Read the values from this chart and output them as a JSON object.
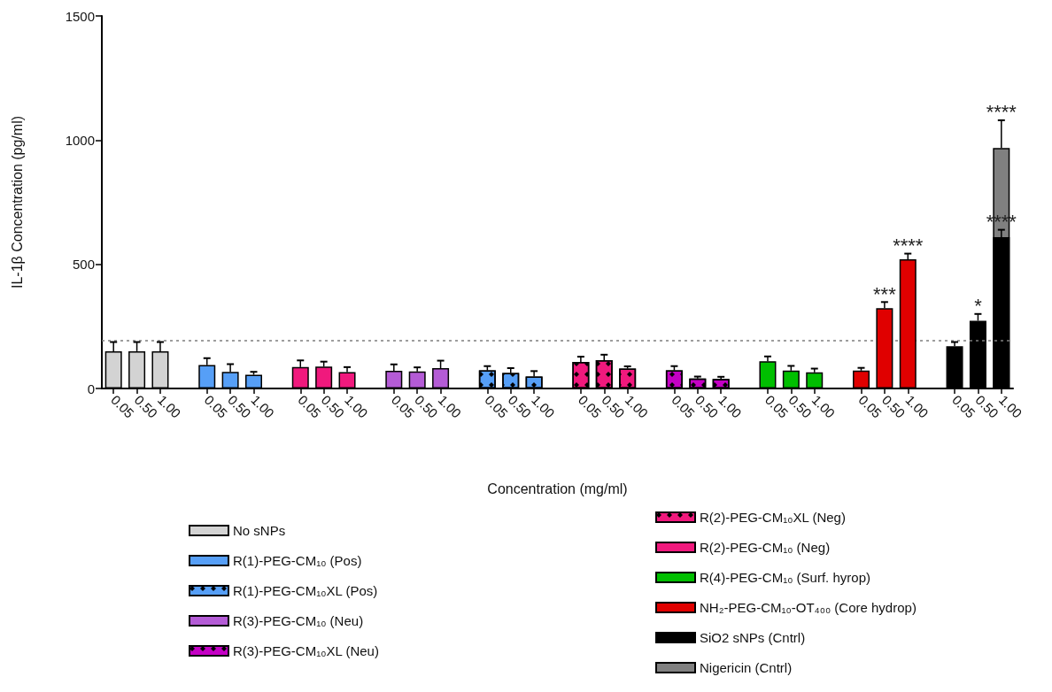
{
  "chart_data": {
    "type": "bar",
    "xlabel": "Concentration (mg/ml)",
    "ylabel": "IL-1β Concentration (pg/ml)",
    "categories": [
      "0.05",
      "0.50",
      "1.00",
      null,
      "0.05",
      "0.50",
      "1.00",
      null,
      "0.05",
      "0.50",
      "1.00",
      null,
      "0.05",
      "0.50",
      "1.00",
      null,
      "0.05",
      "0.50",
      "1.00",
      null,
      "0.05",
      "0.50",
      "1.00",
      null,
      "0.05",
      "0.50",
      "1.00",
      null,
      "0.05",
      "0.50",
      "1.00",
      null,
      "0.05",
      "0.50",
      "1.00",
      null,
      "0.05",
      "0.50",
      "1.00"
    ],
    "ylim": [
      0,
      1500
    ],
    "yticks": [
      0,
      500,
      1000,
      1500
    ],
    "grid": false,
    "legend": "bottom",
    "ref_lines": [
      {
        "axis": "y",
        "value": 195,
        "color": "#7f7f7f",
        "line_style": "dotted"
      }
    ],
    "series": [
      {
        "name": "No sNPs",
        "color": "#d3d3d3",
        "values": [
          150,
          150,
          150,
          null,
          null,
          null,
          null,
          null,
          null,
          null,
          null,
          null,
          null,
          null,
          null,
          null,
          null,
          null,
          null,
          null,
          null,
          null,
          null,
          null,
          null,
          null,
          null,
          null,
          null,
          null,
          null,
          null,
          null,
          null,
          null,
          null,
          null,
          null,
          null
        ],
        "errors": [
          37,
          37,
          37,
          null,
          null,
          null,
          null,
          null,
          null,
          null,
          null,
          null,
          null,
          null,
          null,
          null,
          null,
          null,
          null,
          null,
          null,
          null,
          null,
          null,
          null,
          null,
          null,
          null,
          null,
          null,
          null,
          null,
          null,
          null,
          null,
          null,
          null,
          null,
          null
        ]
      },
      {
        "name": "R(1)-PEG-CM₁₀ (Pos)",
        "color": "#569ff7",
        "values": [
          null,
          null,
          null,
          null,
          94,
          67,
          55,
          null,
          null,
          null,
          null,
          null,
          null,
          null,
          null,
          null,
          null,
          null,
          null,
          null,
          null,
          null,
          null,
          null,
          null,
          null,
          null,
          null,
          null,
          null,
          null,
          null,
          null,
          null,
          null,
          null,
          null,
          null,
          null
        ],
        "errors": [
          null,
          null,
          null,
          null,
          28,
          31,
          12,
          null,
          null,
          null,
          null,
          null,
          null,
          null,
          null,
          null,
          null,
          null,
          null,
          null,
          null,
          null,
          null,
          null,
          null,
          null,
          null,
          null,
          null,
          null,
          null,
          null,
          null,
          null,
          null,
          null,
          null,
          null,
          null
        ]
      },
      {
        "name": "R(1)-PEG-CM₁₀XL (Pos)",
        "color": "#569ff7",
        "marker": "diamond",
        "values": [
          null,
          null,
          null,
          null,
          null,
          null,
          null,
          null,
          null,
          null,
          null,
          null,
          null,
          null,
          null,
          null,
          73,
          62,
          48,
          null,
          null,
          null,
          null,
          null,
          null,
          null,
          null,
          null,
          null,
          null,
          null,
          null,
          null,
          null,
          null,
          null,
          null,
          null,
          null
        ],
        "errors": [
          null,
          null,
          null,
          null,
          null,
          null,
          null,
          null,
          null,
          null,
          null,
          null,
          null,
          null,
          null,
          null,
          17,
          20,
          22,
          null,
          null,
          null,
          null,
          null,
          null,
          null,
          null,
          null,
          null,
          null,
          null,
          null,
          null,
          null,
          null,
          null,
          null,
          null,
          null
        ]
      },
      {
        "name": "R(3)-PEG-CM₁₀ (Neu)",
        "color": "#b45bd6",
        "values": [
          null,
          null,
          null,
          null,
          null,
          null,
          null,
          null,
          null,
          null,
          null,
          null,
          71,
          69,
          82,
          null,
          null,
          null,
          null,
          null,
          null,
          null,
          null,
          null,
          null,
          null,
          null,
          null,
          null,
          null,
          null,
          null,
          null,
          null,
          null,
          null,
          null,
          null,
          null
        ],
        "errors": [
          null,
          null,
          null,
          null,
          null,
          null,
          null,
          null,
          null,
          null,
          null,
          null,
          26,
          16,
          30,
          null,
          null,
          null,
          null,
          null,
          null,
          null,
          null,
          null,
          null,
          null,
          null,
          null,
          null,
          null,
          null,
          null,
          null,
          null,
          null,
          null,
          null,
          null,
          null
        ]
      },
      {
        "name": "R(3)-PEG-CM₁₀XL (Neu)",
        "color": "#c400c4",
        "marker": "diamond",
        "values": [
          null,
          null,
          null,
          null,
          null,
          null,
          null,
          null,
          null,
          null,
          null,
          null,
          null,
          null,
          null,
          null,
          null,
          null,
          null,
          null,
          null,
          null,
          null,
          null,
          73,
          40,
          38,
          null,
          null,
          null,
          null,
          null,
          null,
          null,
          null,
          null,
          null,
          null,
          null
        ],
        "errors": [
          null,
          null,
          null,
          null,
          null,
          null,
          null,
          null,
          null,
          null,
          null,
          null,
          null,
          null,
          null,
          null,
          null,
          null,
          null,
          null,
          null,
          null,
          null,
          null,
          17,
          8,
          9,
          null,
          null,
          null,
          null,
          null,
          null,
          null,
          null,
          null,
          null,
          null,
          null
        ]
      },
      {
        "name": "R(2)-PEG-CM₁₀XL (Neg)",
        "color": "#f0197d",
        "marker": "diamond",
        "values": [
          null,
          null,
          null,
          null,
          null,
          null,
          null,
          null,
          null,
          null,
          null,
          null,
          null,
          null,
          null,
          null,
          null,
          null,
          null,
          null,
          107,
          114,
          80,
          null,
          null,
          null,
          null,
          null,
          null,
          null,
          null,
          null,
          null,
          null,
          null,
          null,
          null,
          null,
          null
        ],
        "errors": [
          null,
          null,
          null,
          null,
          null,
          null,
          null,
          null,
          null,
          null,
          null,
          null,
          null,
          null,
          null,
          null,
          null,
          null,
          null,
          null,
          21,
          22,
          9,
          null,
          null,
          null,
          null,
          null,
          null,
          null,
          null,
          null,
          null,
          null,
          null,
          null,
          null,
          null,
          null
        ]
      },
      {
        "name": "R(2)-PEG-CM₁₀ (Neg)",
        "color": "#f0197d",
        "values": [
          null,
          null,
          null,
          null,
          null,
          null,
          null,
          null,
          86,
          88,
          66,
          null,
          null,
          null,
          null,
          null,
          null,
          null,
          null,
          null,
          null,
          null,
          null,
          null,
          null,
          null,
          null,
          null,
          null,
          null,
          null,
          null,
          null,
          null,
          null,
          null,
          null,
          null,
          null
        ],
        "errors": [
          null,
          null,
          null,
          null,
          null,
          null,
          null,
          null,
          27,
          20,
          20,
          null,
          null,
          null,
          null,
          null,
          null,
          null,
          null,
          null,
          null,
          null,
          null,
          null,
          null,
          null,
          null,
          null,
          null,
          null,
          null,
          null,
          null,
          null,
          null,
          null,
          null,
          null,
          null
        ]
      },
      {
        "name": "R(4)-PEG-CM₁₀ (Surf. hyrop)",
        "color": "#00bf00",
        "values": [
          null,
          null,
          null,
          null,
          null,
          null,
          null,
          null,
          null,
          null,
          null,
          null,
          null,
          null,
          null,
          null,
          null,
          null,
          null,
          null,
          null,
          null,
          null,
          null,
          null,
          null,
          null,
          null,
          110,
          72,
          65,
          null,
          null,
          null,
          null,
          null,
          null,
          null,
          null
        ],
        "errors": [
          null,
          null,
          null,
          null,
          null,
          null,
          null,
          null,
          null,
          null,
          null,
          null,
          null,
          null,
          null,
          null,
          null,
          null,
          null,
          null,
          null,
          null,
          null,
          null,
          null,
          null,
          null,
          null,
          19,
          19,
          15,
          null,
          null,
          null,
          null,
          null,
          null,
          null,
          null
        ]
      },
      {
        "name": "NH₂-PEG-CM₁₀-OT₄₀₀ (Core hydrop)",
        "color": "#e00000",
        "values": [
          null,
          null,
          null,
          null,
          null,
          null,
          null,
          null,
          null,
          null,
          null,
          null,
          null,
          null,
          null,
          null,
          null,
          null,
          null,
          null,
          null,
          null,
          null,
          null,
          null,
          null,
          null,
          null,
          null,
          null,
          null,
          null,
          72,
          323,
          520,
          null,
          null,
          null,
          null
        ],
        "errors": [
          null,
          null,
          null,
          null,
          null,
          null,
          null,
          null,
          null,
          null,
          null,
          null,
          null,
          null,
          null,
          null,
          null,
          null,
          null,
          null,
          null,
          null,
          null,
          null,
          null,
          null,
          null,
          null,
          null,
          null,
          null,
          null,
          11,
          25,
          23,
          null,
          null,
          null,
          null
        ],
        "value_labels": [
          null,
          null,
          null,
          null,
          null,
          null,
          null,
          null,
          null,
          null,
          null,
          null,
          null,
          null,
          null,
          null,
          null,
          null,
          null,
          null,
          null,
          null,
          null,
          null,
          null,
          null,
          null,
          null,
          null,
          null,
          null,
          null,
          null,
          "***",
          "****",
          null,
          null,
          null,
          null
        ]
      },
      {
        "name": "SiO2 sNPs (Cntrl)",
        "color": "#000000",
        "values": [
          null,
          null,
          null,
          null,
          null,
          null,
          null,
          null,
          null,
          null,
          null,
          null,
          null,
          null,
          null,
          null,
          null,
          null,
          null,
          null,
          null,
          null,
          null,
          null,
          null,
          null,
          null,
          null,
          null,
          null,
          null,
          null,
          null,
          null,
          null,
          null,
          170,
          273,
          609
        ],
        "errors": [
          null,
          null,
          null,
          null,
          null,
          null,
          null,
          null,
          null,
          null,
          null,
          null,
          null,
          null,
          null,
          null,
          null,
          null,
          null,
          null,
          null,
          null,
          null,
          null,
          null,
          null,
          null,
          null,
          null,
          null,
          null,
          null,
          null,
          null,
          null,
          null,
          17,
          27,
          30
        ],
        "value_labels": [
          null,
          null,
          null,
          null,
          null,
          null,
          null,
          null,
          null,
          null,
          null,
          null,
          null,
          null,
          null,
          null,
          null,
          null,
          null,
          null,
          null,
          null,
          null,
          null,
          null,
          null,
          null,
          null,
          null,
          null,
          null,
          null,
          null,
          null,
          null,
          null,
          null,
          "*",
          "****"
        ]
      },
      {
        "name": "Nigericin (Cntrl)",
        "color": "#808080",
        "values": [
          null,
          null,
          null,
          null,
          null,
          null,
          null,
          null,
          null,
          null,
          null,
          null,
          null,
          null,
          null,
          null,
          null,
          null,
          null,
          null,
          null,
          null,
          null,
          null,
          null,
          null,
          null,
          null,
          null,
          null,
          null,
          null,
          null,
          null,
          null,
          null,
          null,
          null,
          968
        ],
        "errors": [
          null,
          null,
          null,
          null,
          null,
          null,
          null,
          null,
          null,
          null,
          null,
          null,
          null,
          null,
          null,
          null,
          null,
          null,
          null,
          null,
          null,
          null,
          null,
          null,
          null,
          null,
          null,
          null,
          null,
          null,
          null,
          null,
          null,
          null,
          null,
          null,
          null,
          null,
          112
        ],
        "value_labels": [
          null,
          null,
          null,
          null,
          null,
          null,
          null,
          null,
          null,
          null,
          null,
          null,
          null,
          null,
          null,
          null,
          null,
          null,
          null,
          null,
          null,
          null,
          null,
          null,
          null,
          null,
          null,
          null,
          null,
          null,
          null,
          null,
          null,
          null,
          null,
          null,
          null,
          null,
          "****"
        ]
      }
    ]
  }
}
